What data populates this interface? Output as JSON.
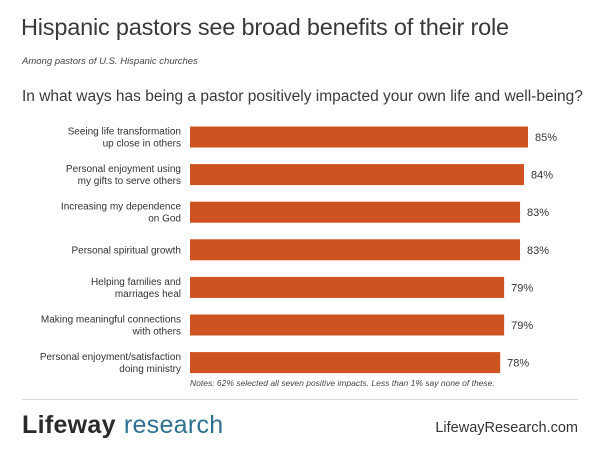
{
  "header": {
    "title": "Hispanic pastors see broad benefits of their role",
    "subtitle": "Among pastors of U.S. Hispanic churches",
    "question": "In what ways has being a pastor positively impacted your own life and well-being?"
  },
  "chart_data": {
    "type": "bar",
    "orientation": "horizontal",
    "categories": [
      [
        "Seeing life transformation",
        "up close in others"
      ],
      [
        "Personal enjoyment using",
        "my gifts to serve others"
      ],
      [
        "Increasing my dependence",
        "on God"
      ],
      [
        "Personal spiritual growth"
      ],
      [
        "Helping families and",
        "marriages heal"
      ],
      [
        "Making meaningful connections",
        "with others"
      ],
      [
        "Personal enjoyment/satisfaction",
        "doing ministry"
      ]
    ],
    "values": [
      85,
      84,
      83,
      83,
      79,
      79,
      78
    ],
    "value_labels": [
      "85%",
      "84%",
      "83%",
      "83%",
      "79%",
      "79%",
      "78%"
    ],
    "bar_color": "#cf5221",
    "grid": false,
    "legend": "none"
  },
  "footer": {
    "note": "Notes: 62% selected all seven positive impacts. Less than 1% say none of these.",
    "logo_brand": "Lifeway",
    "logo_research": "research",
    "url": "LifewayResearch.com"
  },
  "colors": {
    "bar": "#cf5221",
    "logo_research": "#2f6f8f"
  }
}
